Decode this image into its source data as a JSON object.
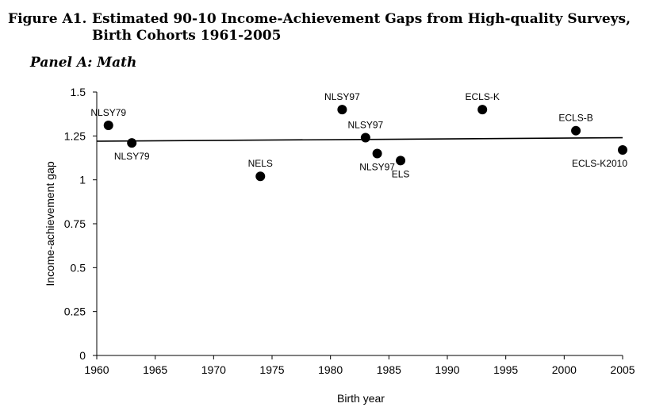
{
  "figure": {
    "label": "Figure A1.",
    "title": "Estimated 90-10 Income-Achievement Gaps from High-quality Surveys, Birth Cohorts 1961-2005"
  },
  "panel": {
    "title": "Panel A: Math"
  },
  "chart_data": {
    "type": "scatter",
    "xlabel": "Birth year",
    "ylabel": "Income-achievement gap",
    "xlim": [
      1960,
      2005
    ],
    "ylim": [
      0,
      1.5
    ],
    "xticks": [
      "1960",
      "1965",
      "1970",
      "1975",
      "1980",
      "1985",
      "1990",
      "1995",
      "2000",
      "2005"
    ],
    "yticks": [
      "0",
      "0.25",
      "0.5",
      "0.75",
      "1",
      "1.25",
      "1.5"
    ],
    "grid": false,
    "legend": "none",
    "points": [
      {
        "x": 1961,
        "y": 1.31,
        "label": "NLSY79",
        "label_pos": "above"
      },
      {
        "x": 1963,
        "y": 1.21,
        "label": "NLSY79",
        "label_pos": "below"
      },
      {
        "x": 1974,
        "y": 1.02,
        "label": "NELS",
        "label_pos": "above"
      },
      {
        "x": 1981,
        "y": 1.4,
        "label": "NLSY97",
        "label_pos": "above"
      },
      {
        "x": 1983,
        "y": 1.24,
        "label": "NLSY97",
        "label_pos": "above"
      },
      {
        "x": 1984,
        "y": 1.15,
        "label": "NLSY97",
        "label_pos": "below"
      },
      {
        "x": 1986,
        "y": 1.11,
        "label": "ELS",
        "label_pos": "below"
      },
      {
        "x": 1993,
        "y": 1.4,
        "label": "ECLS-K",
        "label_pos": "above"
      },
      {
        "x": 2001,
        "y": 1.28,
        "label": "ECLS-B",
        "label_pos": "above"
      },
      {
        "x": 2005,
        "y": 1.17,
        "label": "ECLS-K2010",
        "label_pos": "below"
      }
    ],
    "trendline": {
      "x": [
        1960,
        2005
      ],
      "y": [
        1.22,
        1.24
      ]
    },
    "colors": {
      "marker": "#000000",
      "trendline": "#000000",
      "axis": "#000000"
    }
  }
}
